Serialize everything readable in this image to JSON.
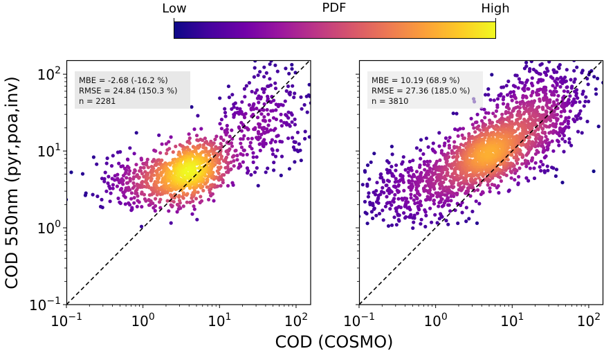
{
  "chart_data": {
    "type": "scatter",
    "layout": "two panels side by side, shared y-axis label, shared x-axis label",
    "xlabel": "COD (COSMO)",
    "ylabel": "COD 550nm (pyr,poa,inv)",
    "xscale": "log",
    "yscale": "log",
    "xlim": [
      0.1,
      155
    ],
    "ylim": [
      0.1,
      152
    ],
    "x_ticks": [
      {
        "mantissa": "10",
        "exp": "−1",
        "value": 0.1
      },
      {
        "mantissa": "10",
        "exp": "0",
        "value": 1
      },
      {
        "mantissa": "10",
        "exp": "1",
        "value": 10
      },
      {
        "mantissa": "10",
        "exp": "2",
        "value": 100
      }
    ],
    "y_ticks": [
      {
        "mantissa": "10",
        "exp": "−1",
        "value": 0.1
      },
      {
        "mantissa": "10",
        "exp": "0",
        "value": 1
      },
      {
        "mantissa": "10",
        "exp": "1",
        "value": 10
      },
      {
        "mantissa": "10",
        "exp": "2",
        "value": 100
      }
    ],
    "reference_line": {
      "type": "1:1",
      "style": "dashed",
      "color": "#000000"
    },
    "colorbar": {
      "title": "PDF",
      "low_label": "Low",
      "high_label": "High",
      "colormap": "plasma",
      "stops": [
        "#0d0887",
        "#46039f",
        "#7201a8",
        "#9c179e",
        "#bd3786",
        "#d8576b",
        "#ed7953",
        "#fb9f3a",
        "#fdca26",
        "#f0f921"
      ],
      "placement": "top-center"
    },
    "panels": [
      {
        "name": "left",
        "stats": {
          "mbe": "MBE = -2.68 (-16.2 %)",
          "rmse": "RMSE = 24.84 (150.3 %)",
          "n": "n = 2281"
        },
        "n_points": 2281,
        "show_y_tick_labels": true,
        "point_clusters": [
          {
            "center_log10": [
              0.65,
              0.75
            ],
            "spread_log10": [
              0.28,
              0.22
            ],
            "corr": 0.45,
            "weight": 0.55
          },
          {
            "center_log10": [
              0.05,
              0.65
            ],
            "spread_log10": [
              0.4,
              0.22
            ],
            "corr": 0.2,
            "weight": 0.22
          },
          {
            "center_log10": [
              1.6,
              1.45
            ],
            "spread_log10": [
              0.3,
              0.35
            ],
            "corr": 0.1,
            "weight": 0.23
          }
        ],
        "density_color_scale": 1.0
      },
      {
        "name": "right",
        "stats": {
          "mbe": "MBE = 10.19 (68.9 %)",
          "rmse": "RMSE = 27.36 (185.0 %)",
          "n": "n = 3810"
        },
        "n_points": 3810,
        "show_y_tick_labels": false,
        "point_clusters": [
          {
            "center_log10": [
              0.65,
              0.95
            ],
            "spread_log10": [
              0.3,
              0.22
            ],
            "corr": 0.45,
            "weight": 0.45
          },
          {
            "center_log10": [
              -0.15,
              0.55
            ],
            "spread_log10": [
              0.45,
              0.25
            ],
            "corr": 0.25,
            "weight": 0.22
          },
          {
            "center_log10": [
              1.3,
              1.45
            ],
            "spread_log10": [
              0.35,
              0.38
            ],
            "corr": 0.35,
            "weight": 0.33
          }
        ],
        "density_color_scale": 0.82
      }
    ]
  }
}
